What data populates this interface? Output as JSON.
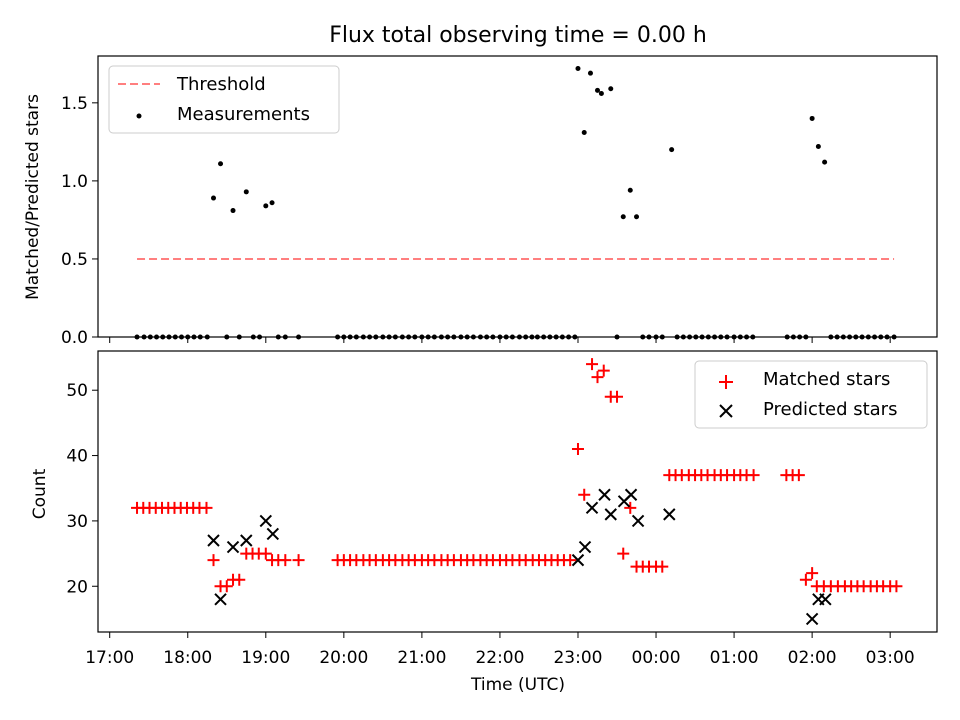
{
  "figure_title": "Flux total observing time = 0.00 h",
  "colors": {
    "threshold": "#ff7f7f",
    "measurements": "#000000",
    "matched": "#ff0000",
    "predicted": "#000000"
  },
  "chart_data": [
    {
      "type": "scatter",
      "title": "Flux total observing time = 0.00 h",
      "xlabel": "",
      "ylabel": "Matched/Predicted stars",
      "xlim": [
        16.85,
        27.6
      ],
      "ylim": [
        0,
        1.8
      ],
      "y_ticks": [
        0.0,
        0.5,
        1.0,
        1.5
      ],
      "y_tick_labels": [
        "0.0",
        "0.5",
        "1.0",
        "1.5"
      ],
      "legend": {
        "position": "top-left",
        "entries": [
          "Threshold",
          "Measurements"
        ]
      },
      "threshold": {
        "name": "Threshold",
        "y": 0.5,
        "x_range": [
          17.35,
          27.05
        ]
      },
      "measurements": {
        "name": "Measurements",
        "x": [
          17.35,
          17.44,
          17.52,
          17.6,
          17.68,
          17.76,
          17.84,
          17.92,
          18.0,
          18.08,
          18.16,
          18.25,
          18.33,
          18.42,
          18.5,
          18.58,
          18.66,
          18.75,
          18.84,
          18.92,
          19.0,
          19.08,
          19.16,
          19.25,
          19.42,
          19.92,
          20.0,
          20.08,
          20.16,
          20.25,
          20.33,
          20.41,
          20.5,
          20.58,
          20.66,
          20.75,
          20.83,
          20.91,
          21.0,
          21.08,
          21.16,
          21.25,
          21.33,
          21.41,
          21.5,
          21.58,
          21.66,
          21.75,
          21.83,
          21.91,
          22.0,
          22.08,
          22.16,
          22.25,
          22.33,
          22.41,
          22.48,
          22.56,
          22.64,
          22.72,
          22.8,
          22.88,
          22.96,
          23.0,
          23.08,
          23.16,
          23.25,
          23.3,
          23.42,
          23.5,
          23.58,
          23.67,
          23.75,
          23.83,
          23.91,
          24.0,
          24.08,
          24.2,
          24.27,
          24.35,
          24.43,
          24.51,
          24.59,
          24.67,
          24.75,
          24.83,
          24.91,
          25.0,
          25.08,
          25.16,
          25.24,
          25.68,
          25.76,
          25.84,
          25.92,
          26.0,
          26.08,
          26.16,
          26.24,
          26.32,
          26.4,
          26.48,
          26.56,
          26.64,
          26.72,
          26.8,
          26.88,
          26.96,
          27.05
        ],
        "y": [
          0,
          0,
          0,
          0,
          0,
          0,
          0,
          0,
          0,
          0,
          0,
          0,
          0.89,
          1.11,
          0,
          0.81,
          0,
          0.93,
          0,
          0,
          0.84,
          0.86,
          0,
          0,
          0,
          0,
          0,
          0,
          0,
          0,
          0,
          0,
          0,
          0,
          0,
          0,
          0,
          0,
          0,
          0,
          0,
          0,
          0,
          0,
          0,
          0,
          0,
          0,
          0,
          0,
          0,
          0,
          0,
          0,
          0,
          0,
          0,
          0,
          0,
          0,
          0,
          0,
          0,
          1.72,
          1.31,
          1.69,
          1.58,
          1.56,
          1.59,
          0,
          0.77,
          0.94,
          0.77,
          0,
          0,
          0,
          0,
          1.2,
          0,
          0,
          0,
          0,
          0,
          0,
          0,
          0,
          0,
          0,
          0,
          0,
          0,
          0,
          0,
          0,
          0,
          1.4,
          1.22,
          1.12,
          0,
          0,
          0,
          0,
          0,
          0,
          0,
          0,
          0,
          0,
          0
        ]
      }
    },
    {
      "type": "scatter",
      "title": "",
      "xlabel": "Time (UTC)",
      "ylabel": "Count",
      "xlim": [
        16.85,
        27.6
      ],
      "ylim": [
        13,
        56
      ],
      "x_ticks": [
        17,
        18,
        19,
        20,
        21,
        22,
        23,
        24,
        25,
        26,
        27
      ],
      "x_tick_labels": [
        "17:00",
        "18:00",
        "19:00",
        "20:00",
        "21:00",
        "22:00",
        "23:00",
        "00:00",
        "01:00",
        "02:00",
        "03:00"
      ],
      "y_ticks": [
        20,
        30,
        40,
        50
      ],
      "y_tick_labels": [
        "20",
        "30",
        "40",
        "50"
      ],
      "legend": {
        "position": "top-right",
        "entries": [
          "Matched stars",
          "Predicted stars"
        ]
      },
      "series": [
        {
          "name": "Matched stars",
          "marker": "+",
          "x": [
            17.35,
            17.43,
            17.51,
            17.59,
            17.67,
            17.75,
            17.83,
            17.91,
            17.99,
            18.07,
            18.15,
            18.24,
            18.33,
            18.42,
            18.5,
            18.58,
            18.66,
            18.75,
            18.83,
            18.91,
            19.0,
            19.08,
            19.16,
            19.25,
            19.42,
            19.92,
            20.0,
            20.08,
            20.16,
            20.25,
            20.33,
            20.41,
            20.5,
            20.58,
            20.66,
            20.75,
            20.83,
            20.91,
            21.0,
            21.08,
            21.16,
            21.25,
            21.33,
            21.41,
            21.5,
            21.58,
            21.66,
            21.75,
            21.83,
            21.91,
            22.0,
            22.08,
            22.16,
            22.25,
            22.33,
            22.42,
            22.5,
            22.58,
            22.66,
            22.74,
            22.82,
            22.9,
            23.0,
            23.08,
            23.18,
            23.25,
            23.33,
            23.42,
            23.5,
            23.58,
            23.67,
            23.75,
            23.83,
            23.91,
            24.0,
            24.08,
            24.17,
            24.25,
            24.33,
            24.42,
            24.5,
            24.58,
            24.66,
            24.75,
            24.83,
            24.91,
            25.0,
            25.08,
            25.16,
            25.25,
            25.67,
            25.75,
            25.83,
            25.92,
            26.0,
            26.06,
            26.15,
            26.24,
            26.33,
            26.42,
            26.5,
            26.58,
            26.66,
            26.75,
            26.83,
            26.91,
            27.0,
            27.08
          ],
          "y": [
            32,
            32,
            32,
            32,
            32,
            32,
            32,
            32,
            32,
            32,
            32,
            32,
            24,
            20,
            20,
            21,
            21,
            25,
            25,
            25,
            25,
            24,
            24,
            24,
            24,
            24,
            24,
            24,
            24,
            24,
            24,
            24,
            24,
            24,
            24,
            24,
            24,
            24,
            24,
            24,
            24,
            24,
            24,
            24,
            24,
            24,
            24,
            24,
            24,
            24,
            24,
            24,
            24,
            24,
            24,
            24,
            24,
            24,
            24,
            24,
            24,
            24,
            41,
            34,
            54,
            52,
            53,
            49,
            49,
            25,
            32,
            23,
            23,
            23,
            23,
            23,
            37,
            37,
            37,
            37,
            37,
            37,
            37,
            37,
            37,
            37,
            37,
            37,
            37,
            37,
            37,
            37,
            37,
            21,
            22,
            20,
            20,
            20,
            20,
            20,
            20,
            20,
            20,
            20,
            20,
            20,
            20,
            20
          ]
        },
        {
          "name": "Predicted stars",
          "marker": "x",
          "x": [
            18.33,
            18.42,
            18.58,
            18.75,
            19.0,
            19.09,
            23.0,
            23.09,
            23.18,
            23.34,
            23.42,
            23.59,
            23.68,
            23.77,
            24.17,
            26.0,
            26.08,
            26.17
          ],
          "y": [
            27,
            18,
            26,
            27,
            30,
            28,
            24,
            26,
            32,
            34,
            31,
            33,
            34,
            30,
            31,
            15,
            18,
            18
          ]
        }
      ]
    }
  ]
}
